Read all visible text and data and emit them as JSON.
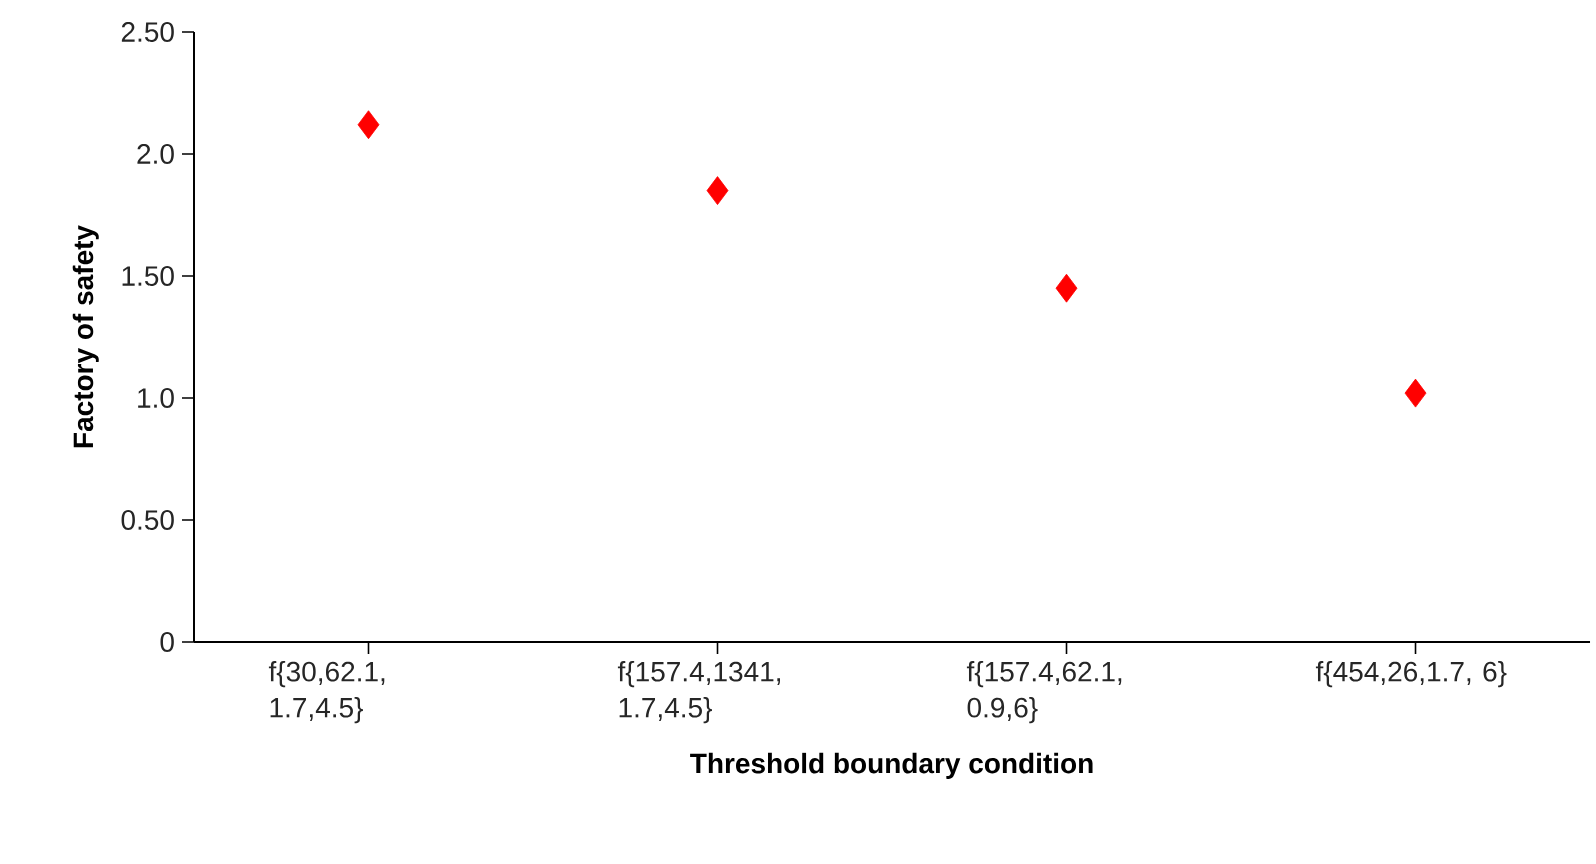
{
  "chart_data": {
    "type": "scatter",
    "xlabel": "Threshold boundary condition",
    "ylabel": "Factory of safety",
    "categories": [
      "f{30,62.1, 1.7,4.5}",
      "f{157.4,1341, 1.7,4.5}",
      "f{157.4,62.1, 0.9,6}",
      "f{454,26,1.7, 6}"
    ],
    "values": [
      2.12,
      1.85,
      1.45,
      1.02
    ],
    "color": "#ff0000",
    "marker": "diamond",
    "ylim": [
      0,
      2.5
    ],
    "yticks": [
      0,
      {
        "value": 0.5,
        "label": "0.50"
      },
      {
        "value": 1,
        "label": "1.0"
      },
      {
        "value": 1.5,
        "label": "1.50"
      },
      {
        "value": 2,
        "label": "2.0"
      },
      {
        "value": 2.5,
        "label": "2.50"
      }
    ]
  }
}
